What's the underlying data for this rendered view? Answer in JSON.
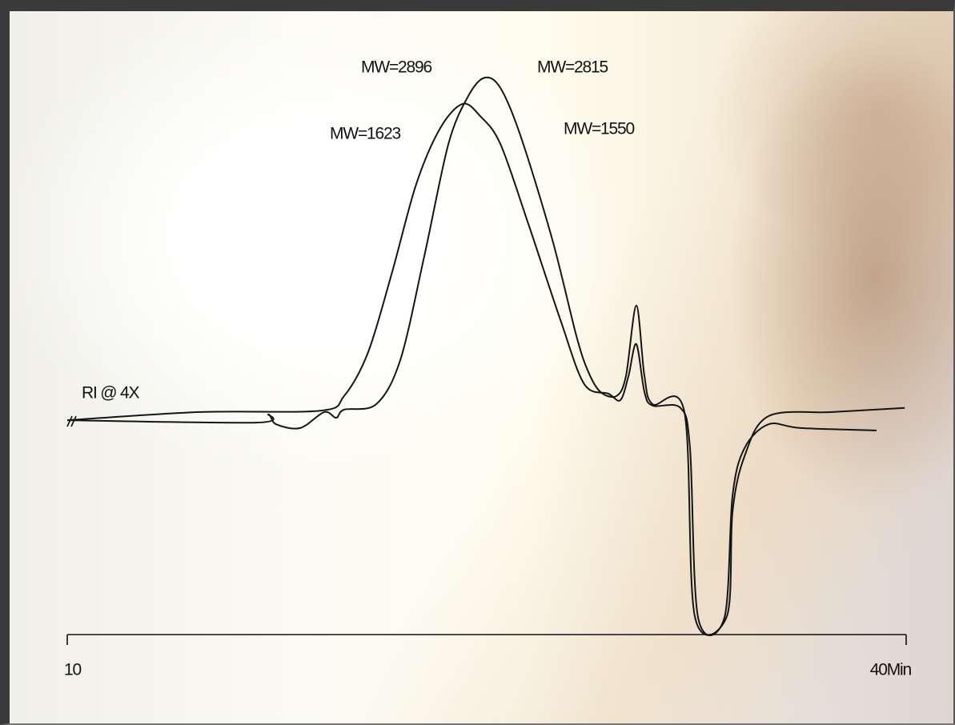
{
  "chart_data": {
    "type": "line",
    "annotations": [
      "MW=2896",
      "MW=2815",
      "MW=1623",
      "MW=1550",
      "RI @ 4X"
    ],
    "xlim": [
      10,
      40
    ],
    "xticks": [
      10,
      {
        "value": 40,
        "label": "40Min"
      }
    ],
    "ylim": [
      -60,
      100
    ],
    "series": [
      {
        "color": "#151515",
        "x": [
          10,
          14.75,
          19.05,
          19.9,
          20.76,
          21.62,
          22.48,
          23.34,
          24.14,
          24.77,
          25.49,
          26.49,
          27.64,
          28.49,
          29.35,
          29.78,
          30.07,
          30.35,
          30.64,
          30.93,
          31.93,
          32.27,
          32.56,
          33.5,
          33.79,
          34.22,
          35.08,
          36.22,
          38.94
        ],
        "values": [
          -1.2,
          1.2,
          1.6,
          5.9,
          18.8,
          42.4,
          68.2,
          84.7,
          91.8,
          88.2,
          80,
          56.5,
          28.2,
          9.4,
          6.6,
          4.7,
          11.8,
          21.2,
          7.1,
          3.1,
          2.4,
          -9.4,
          -59.3,
          -59.3,
          -23.5,
          -9.4,
          -2.4,
          -3.5,
          -4.2
        ]
      },
      {
        "color": "#151515",
        "x": [
          10,
          16.76,
          17.19,
          17.47,
          18.33,
          19.19,
          19.62,
          19.9,
          21.05,
          21.91,
          22.77,
          23.63,
          24.34,
          24.92,
          25.49,
          26.21,
          27.35,
          28.21,
          28.64,
          29.07,
          29.64,
          29.98,
          30.35,
          30.64,
          30.93,
          32.07,
          32.44,
          33.59,
          33.79,
          34.22,
          35.08,
          37.37,
          39.95
        ],
        "values": [
          -1.2,
          -1.9,
          0.5,
          -2.4,
          -3.5,
          1.2,
          -0.5,
          1.9,
          3.5,
          16.5,
          47.1,
          80,
          94.1,
          99.5,
          96.5,
          82.4,
          51.8,
          23.5,
          12.9,
          7.1,
          5.9,
          11.8,
          32.5,
          11.8,
          3.5,
          1.2,
          -58.8,
          -58.8,
          -28.2,
          -11.8,
          0,
          1.2,
          2.4
        ]
      }
    ]
  }
}
